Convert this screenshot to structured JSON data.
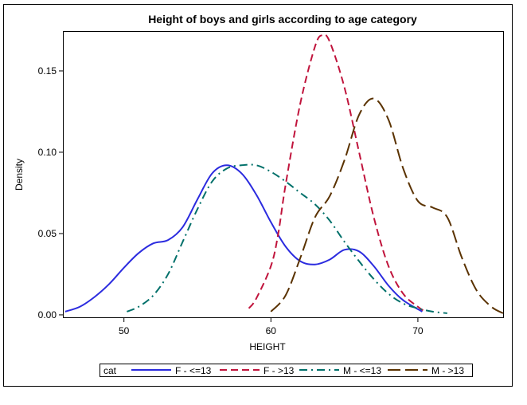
{
  "chart_data": {
    "type": "line",
    "title": "Height of boys and girls according to age category",
    "xlabel": "HEIGHT",
    "ylabel": "Density",
    "xlim": [
      45.9,
      75.8
    ],
    "ylim": [
      -0.0015,
      0.174
    ],
    "xticks": [
      50,
      60,
      70
    ],
    "xtick_labels": [
      "50",
      "60",
      "70"
    ],
    "yticks": [
      0,
      0.05,
      0.1,
      0.15
    ],
    "ytick_labels": [
      "0.00",
      "0.05",
      "0.10",
      "0.15"
    ],
    "grid": false,
    "legend": {
      "title": "cat",
      "placement": "bottom"
    },
    "series": [
      {
        "name": "F - <=13",
        "color": "#2b2bdf",
        "dash": "solid",
        "x": [
          46,
          47,
          48,
          49,
          50,
          51,
          52,
          53,
          54,
          55,
          56,
          57,
          58,
          59,
          60,
          61,
          62,
          63,
          64,
          65,
          66,
          67,
          68,
          69,
          70.3
        ],
        "y": [
          0.002,
          0.005,
          0.011,
          0.019,
          0.029,
          0.038,
          0.044,
          0.046,
          0.054,
          0.071,
          0.087,
          0.092,
          0.087,
          0.074,
          0.057,
          0.042,
          0.033,
          0.031,
          0.034,
          0.04,
          0.039,
          0.03,
          0.018,
          0.009,
          0.002
        ]
      },
      {
        "name": "F - >13",
        "color": "#c0143c",
        "dash": "dashed",
        "x": [
          58.5,
          59,
          60,
          60.5,
          61,
          62,
          63,
          63.5,
          64,
          65,
          66,
          67,
          68,
          69,
          70,
          70.5
        ],
        "y": [
          0.004,
          0.01,
          0.03,
          0.05,
          0.08,
          0.13,
          0.165,
          0.172,
          0.168,
          0.14,
          0.1,
          0.06,
          0.03,
          0.013,
          0.005,
          0.002
        ]
      },
      {
        "name": "M - <=13",
        "color": "#00706a",
        "dash": "dashdot",
        "x": [
          50.2,
          51,
          52,
          53,
          54,
          55,
          56,
          57,
          58,
          59,
          60,
          61,
          62,
          63,
          64,
          65,
          66,
          67,
          68,
          69,
          70,
          71,
          72
        ],
        "y": [
          0.002,
          0.005,
          0.012,
          0.025,
          0.045,
          0.065,
          0.082,
          0.09,
          0.092,
          0.092,
          0.088,
          0.082,
          0.075,
          0.068,
          0.058,
          0.045,
          0.033,
          0.022,
          0.013,
          0.007,
          0.004,
          0.002,
          0.001
        ]
      },
      {
        "name": "M - >13",
        "color": "#5a3200",
        "dash": "longdash",
        "x": [
          60,
          61,
          62,
          63,
          64,
          65,
          66,
          67,
          68,
          69,
          70,
          71,
          72,
          73,
          74,
          75,
          75.8
        ],
        "y": [
          0.002,
          0.012,
          0.035,
          0.06,
          0.073,
          0.095,
          0.123,
          0.133,
          0.12,
          0.09,
          0.07,
          0.066,
          0.06,
          0.035,
          0.015,
          0.005,
          0.001
        ]
      }
    ]
  }
}
